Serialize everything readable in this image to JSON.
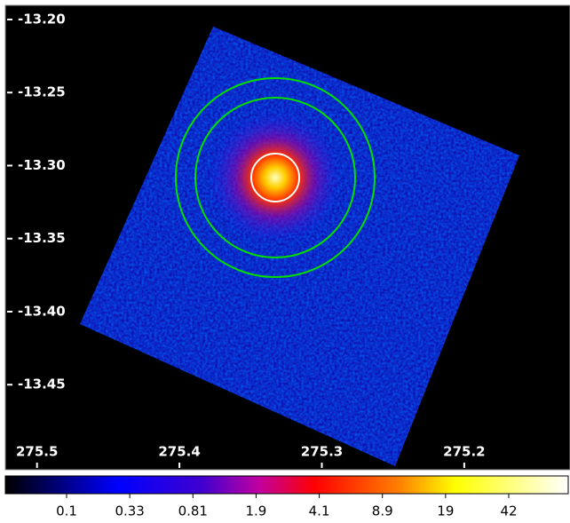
{
  "chart_data": {
    "type": "image",
    "xlim": [
      275.521,
      275.127
    ],
    "xticks": [
      275.5,
      275.4,
      275.3,
      275.2
    ],
    "ylim": [
      -13.1915,
      -13.507
    ],
    "yticks": [
      {
        "value": -13.2,
        "label": "-13.20"
      },
      {
        "value": -13.25,
        "label": "-13.25"
      },
      {
        "value": -13.3,
        "label": "-13.30"
      },
      {
        "value": -13.35,
        "label": "-13.35"
      },
      {
        "value": -13.4,
        "label": "-13.40"
      },
      {
        "value": -13.45,
        "label": "-13.45"
      }
    ],
    "colorbar_ticks": [
      0.1,
      0.33,
      0.81,
      1.9,
      4.1,
      8.9,
      19,
      42
    ]
  }
}
